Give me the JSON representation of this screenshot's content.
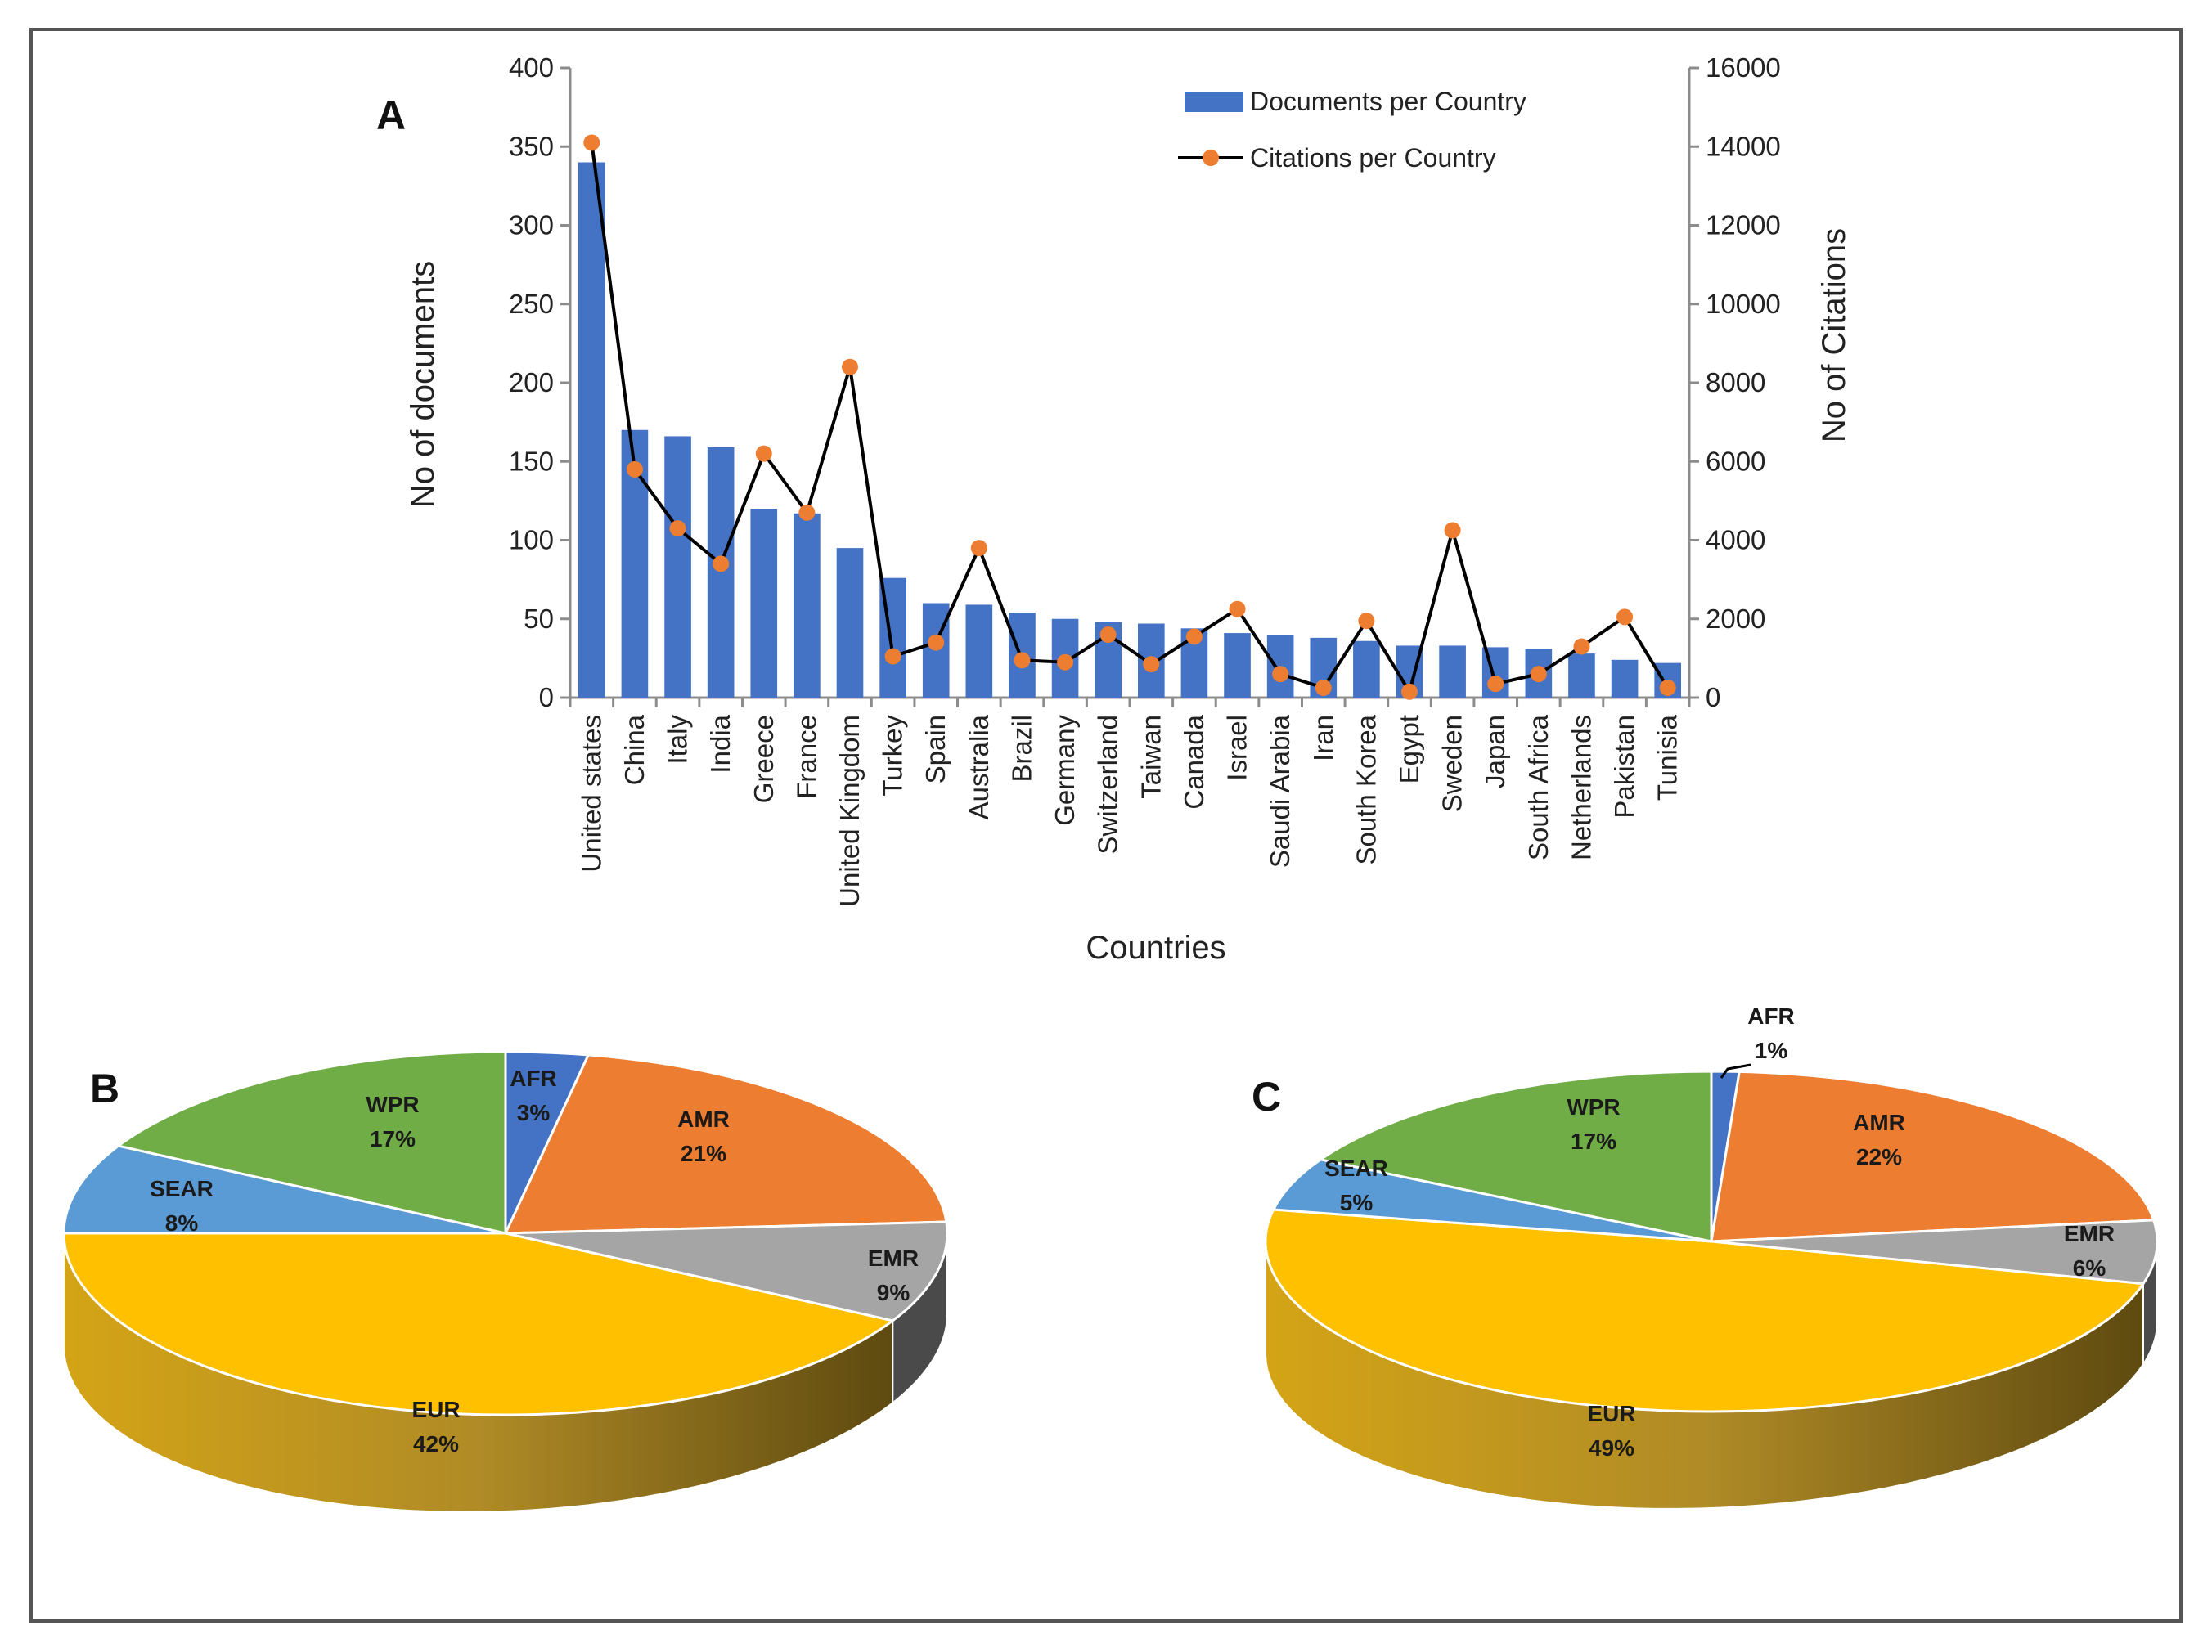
{
  "chart_data": [
    {
      "panel": "A",
      "type": "bar",
      "xlabel": "Countries",
      "ylabel": "No of documents",
      "y2label": "No of Citations",
      "ylim": [
        0,
        400
      ],
      "y2lim": [
        0,
        16000
      ],
      "yticks": [
        "0",
        "50",
        "100",
        "150",
        "200",
        "250",
        "300",
        "350",
        "400"
      ],
      "y2ticks": [
        "0",
        "2000",
        "4000",
        "6000",
        "8000",
        "10000",
        "12000",
        "14000",
        "16000"
      ],
      "categories": [
        "United states",
        "China",
        "Italy",
        "India",
        "Greece",
        "France",
        "United Kingdom",
        "Turkey",
        "Spain",
        "Australia",
        "Brazil",
        "Germany",
        "Switzerland",
        "Taiwan",
        "Canada",
        "Israel",
        "Saudi Arabia",
        "Iran",
        "South Korea",
        "Egypt",
        "Sweden",
        "Japan",
        "South Africa",
        "Netherlands",
        "Pakistan",
        "Tunisia"
      ],
      "series": [
        {
          "name": "Documents per Country",
          "type": "bar",
          "axis": "left",
          "color": "#4472c4",
          "values": [
            340,
            170,
            166,
            159,
            120,
            117,
            95,
            76,
            60,
            59,
            54,
            50,
            48,
            47,
            44,
            41,
            40,
            38,
            36,
            33,
            33,
            32,
            31,
            28,
            24,
            22
          ]
        },
        {
          "name": "Citations per Country",
          "type": "line",
          "axis": "right",
          "color": "#000000",
          "marker_color": "#ed7d31",
          "values": [
            14100,
            5800,
            4300,
            3400,
            6200,
            4700,
            8400,
            1050,
            1400,
            3800,
            950,
            900,
            1600,
            850,
            1550,
            2250,
            600,
            250,
            1950,
            150,
            4250,
            350,
            600,
            1300,
            2050,
            250
          ]
        }
      ]
    },
    {
      "panel": "B",
      "type": "pie",
      "slices": [
        {
          "label": "AFR",
          "value": 3,
          "text": "3%",
          "color": "#4472c4"
        },
        {
          "label": "AMR",
          "value": 21,
          "text": "21%",
          "color": "#ed7d31"
        },
        {
          "label": "EMR",
          "value": 9,
          "text": "9%",
          "color": "#a5a5a5"
        },
        {
          "label": "EUR",
          "value": 42,
          "text": "42%",
          "color": "#ffc000"
        },
        {
          "label": "SEAR",
          "value": 8,
          "text": "8%",
          "color": "#5b9bd5"
        },
        {
          "label": "WPR",
          "value": 17,
          "text": "17%",
          "color": "#70ad47"
        }
      ]
    },
    {
      "panel": "C",
      "type": "pie",
      "slices": [
        {
          "label": "AFR",
          "value": 1,
          "text": "1%",
          "color": "#4472c4"
        },
        {
          "label": "AMR",
          "value": 22,
          "text": "22%",
          "color": "#ed7d31"
        },
        {
          "label": "EMR",
          "value": 6,
          "text": "6%",
          "color": "#a5a5a5"
        },
        {
          "label": "EUR",
          "value": 49,
          "text": "49%",
          "color": "#ffc000"
        },
        {
          "label": "SEAR",
          "value": 5,
          "text": "5%",
          "color": "#5b9bd5"
        },
        {
          "label": "WPR",
          "value": 17,
          "text": "17%",
          "color": "#70ad47"
        }
      ]
    }
  ]
}
